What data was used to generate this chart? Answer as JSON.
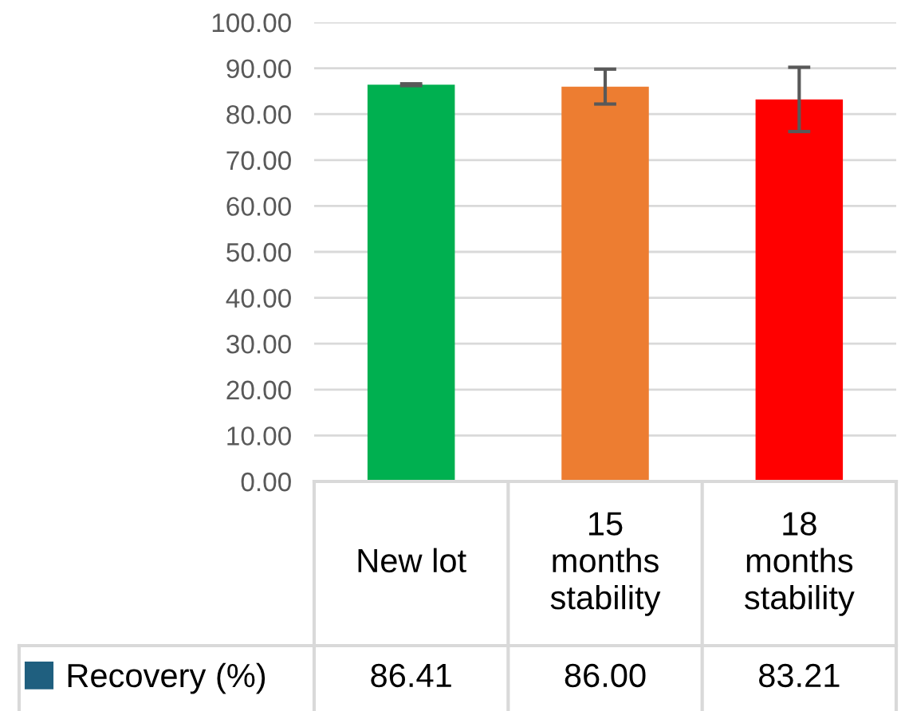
{
  "chart_data": {
    "type": "bar",
    "categories": [
      "New lot",
      "15\nmonths\nstability",
      "18\nmonths\nstability"
    ],
    "series": [
      {
        "name": "Recovery (%)",
        "color": "#1f5f7f",
        "colors": [
          "#00b050",
          "#ed7d31",
          "#ff0000"
        ],
        "values": [
          86.41,
          86.0,
          83.21
        ],
        "errors": [
          0.2,
          3.8,
          7.0
        ],
        "value_labels": [
          "86.41",
          "86.00",
          "83.21"
        ]
      }
    ],
    "ylim": [
      0,
      100
    ],
    "yticks": [
      {
        "value": 0,
        "label": "0.00"
      },
      {
        "value": 10,
        "label": "10.00"
      },
      {
        "value": 20,
        "label": "20.00"
      },
      {
        "value": 30,
        "label": "30.00"
      },
      {
        "value": 40,
        "label": "40.00"
      },
      {
        "value": 50,
        "label": "50.00"
      },
      {
        "value": 60,
        "label": "60.00"
      },
      {
        "value": 70,
        "label": "70.00"
      },
      {
        "value": 80,
        "label": "80.00"
      },
      {
        "value": 90,
        "label": "90.00"
      },
      {
        "value": 100,
        "label": "100.00"
      }
    ],
    "grid": "y",
    "legend": "bottom"
  }
}
